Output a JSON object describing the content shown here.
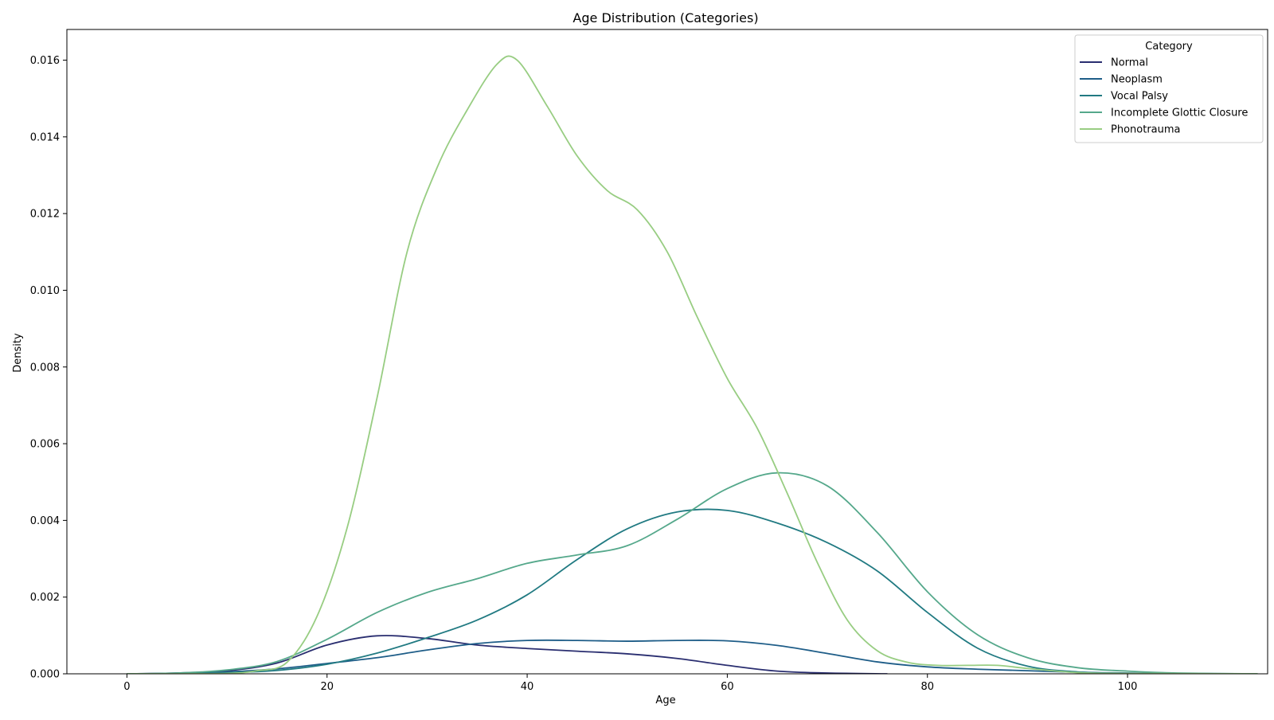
{
  "chart_data": {
    "type": "line",
    "title": "Age Distribution (Categories)",
    "xlabel": "Age",
    "ylabel": "Density",
    "xlim": [
      -6,
      114
    ],
    "ylim": [
      0,
      0.0168
    ],
    "xticks": [
      0,
      20,
      40,
      60,
      80,
      100
    ],
    "yticks": [
      0.0,
      0.002,
      0.004,
      0.006,
      0.008,
      0.01,
      0.012,
      0.014,
      0.016
    ],
    "grid": false,
    "legend": {
      "title": "Category",
      "placement": "top-right"
    },
    "series": [
      {
        "name": "Normal",
        "color": "#2a2e70",
        "points": [
          [
            0,
            0
          ],
          [
            5,
            2e-05
          ],
          [
            10,
            8e-05
          ],
          [
            15,
            0.00028
          ],
          [
            20,
            0.00075
          ],
          [
            25,
            0.00099
          ],
          [
            30,
            0.00092
          ],
          [
            35,
            0.00075
          ],
          [
            40,
            0.00066
          ],
          [
            45,
            0.00059
          ],
          [
            50,
            0.00052
          ],
          [
            55,
            0.0004
          ],
          [
            60,
            0.00022
          ],
          [
            65,
            7e-05
          ],
          [
            70,
            2e-05
          ],
          [
            76,
            0
          ]
        ]
      },
      {
        "name": "Neoplasm",
        "color": "#1e5d88",
        "points": [
          [
            0,
            0
          ],
          [
            5,
            1e-05
          ],
          [
            10,
            5e-05
          ],
          [
            15,
            0.00013
          ],
          [
            20,
            0.00027
          ],
          [
            25,
            0.00042
          ],
          [
            30,
            0.00062
          ],
          [
            35,
            0.00079
          ],
          [
            40,
            0.00087
          ],
          [
            45,
            0.00087
          ],
          [
            50,
            0.00085
          ],
          [
            55,
            0.00087
          ],
          [
            60,
            0.00086
          ],
          [
            65,
            0.00074
          ],
          [
            70,
            0.00053
          ],
          [
            75,
            0.00031
          ],
          [
            80,
            0.00018
          ],
          [
            85,
            0.00012
          ],
          [
            90,
            8e-05
          ],
          [
            95,
            4e-05
          ],
          [
            100,
            2e-05
          ],
          [
            105,
            1e-05
          ],
          [
            113,
            0
          ]
        ]
      },
      {
        "name": "Vocal Palsy",
        "color": "#217a82",
        "points": [
          [
            0,
            0
          ],
          [
            5,
            1e-05
          ],
          [
            10,
            3e-05
          ],
          [
            15,
            9e-05
          ],
          [
            20,
            0.00025
          ],
          [
            25,
            0.00054
          ],
          [
            30,
            0.00094
          ],
          [
            35,
            0.0014
          ],
          [
            40,
            0.00206
          ],
          [
            45,
            0.00298
          ],
          [
            50,
            0.00378
          ],
          [
            55,
            0.00422
          ],
          [
            60,
            0.00426
          ],
          [
            65,
            0.00393
          ],
          [
            70,
            0.00342
          ],
          [
            75,
            0.00268
          ],
          [
            80,
            0.0016
          ],
          [
            85,
            0.00067
          ],
          [
            90,
            0.0002
          ],
          [
            95,
            5e-05
          ],
          [
            100,
            1e-05
          ],
          [
            105,
            0
          ],
          [
            113,
            0
          ]
        ]
      },
      {
        "name": "Incomplete Glottic Closure",
        "color": "#55a88b",
        "points": [
          [
            0,
            0
          ],
          [
            5,
            2e-05
          ],
          [
            10,
            0.0001
          ],
          [
            15,
            0.00032
          ],
          [
            20,
            0.0009
          ],
          [
            25,
            0.0016
          ],
          [
            30,
            0.00212
          ],
          [
            35,
            0.00248
          ],
          [
            40,
            0.00288
          ],
          [
            45,
            0.0031
          ],
          [
            50,
            0.00334
          ],
          [
            55,
            0.00403
          ],
          [
            60,
            0.00483
          ],
          [
            65,
            0.00524
          ],
          [
            70,
            0.0049
          ],
          [
            75,
            0.00368
          ],
          [
            80,
            0.00214
          ],
          [
            85,
            0.00102
          ],
          [
            90,
            0.00042
          ],
          [
            95,
            0.00016
          ],
          [
            100,
            7e-05
          ],
          [
            105,
            2e-05
          ],
          [
            113,
            0
          ]
        ]
      },
      {
        "name": "Phonotrauma",
        "color": "#98cd82",
        "points": [
          [
            0,
            0
          ],
          [
            5,
            0
          ],
          [
            10,
            1e-05
          ],
          [
            13,
            8e-05
          ],
          [
            16,
            0.0003
          ],
          [
            19,
            0.0015
          ],
          [
            22,
            0.0038
          ],
          [
            25,
            0.0072
          ],
          [
            28,
            0.011
          ],
          [
            31,
            0.0132
          ],
          [
            34,
            0.0147
          ],
          [
            37,
            0.0159
          ],
          [
            39,
            0.016
          ],
          [
            42,
            0.0148
          ],
          [
            45,
            0.0135
          ],
          [
            48,
            0.0126
          ],
          [
            51,
            0.0121
          ],
          [
            54,
            0.011
          ],
          [
            57,
            0.0093
          ],
          [
            60,
            0.0077
          ],
          [
            63,
            0.0064
          ],
          [
            66,
            0.0047
          ],
          [
            69,
            0.0029
          ],
          [
            72,
            0.0014
          ],
          [
            75,
            0.0006
          ],
          [
            78,
            0.0003
          ],
          [
            81,
            0.00022
          ],
          [
            84,
            0.00022
          ],
          [
            87,
            0.00022
          ],
          [
            90,
            0.00014
          ],
          [
            95,
            3e-05
          ],
          [
            100,
            1e-05
          ],
          [
            113,
            0
          ]
        ]
      }
    ]
  }
}
